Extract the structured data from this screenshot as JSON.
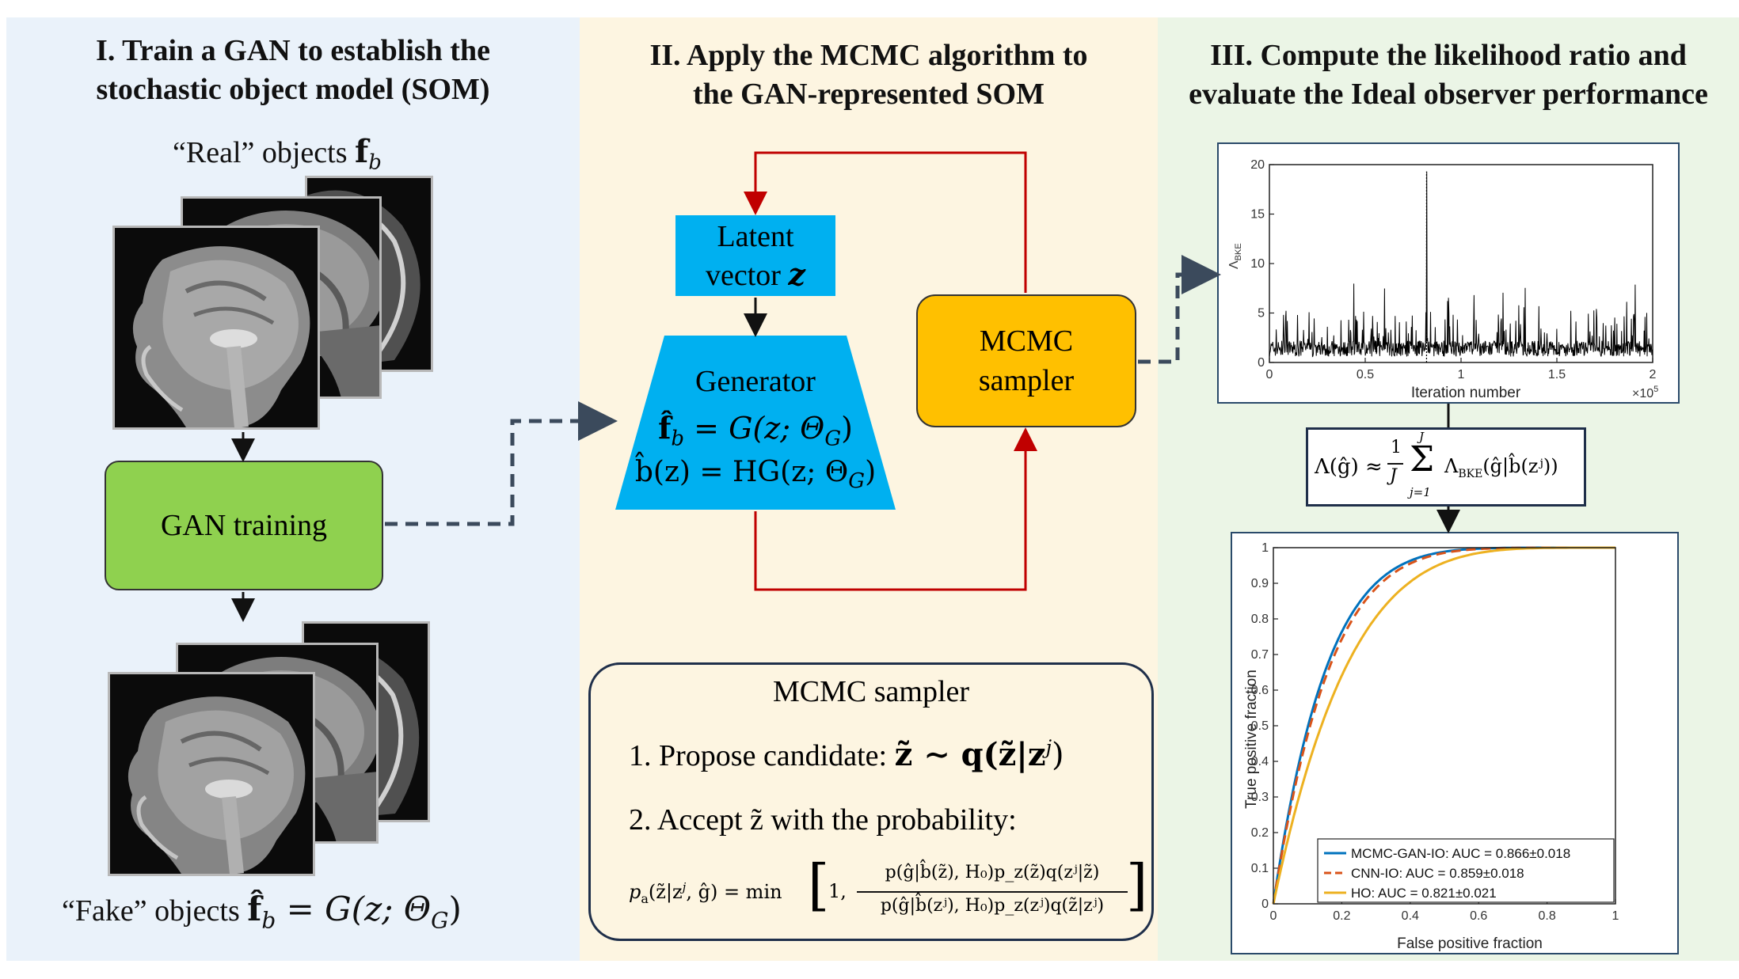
{
  "panel1": {
    "title_line1": "I. Train a GAN to establish the",
    "title_line2": "stochastic object model (SOM)",
    "real_label": "“Real” objects",
    "real_symbol": "f",
    "real_sub": "b",
    "gan_box": "GAN training",
    "fake_label": "“Fake” objects",
    "fake_formula": "f̂",
    "fake_sub": "b",
    "fake_rhs": "= G(z; Θ",
    "fake_rhs_sub": "G",
    "fake_rhs_end": ")"
  },
  "panel2": {
    "title_line1": "II. Apply the MCMC algorithm to",
    "title_line2": "the GAN-represented SOM",
    "latent_line1": "Latent",
    "latent_line2": "vector",
    "latent_sym": "z",
    "generator_title": "Generator",
    "gen_eq1_lhs": "f̂",
    "gen_eq1_sub": "b",
    "gen_eq1_rhs": "= G(z; Θ",
    "gen_eq1_rhs_sub": "G",
    "gen_eq1_end": ")",
    "gen_eq2": "b̂(z) = HG(z; Θ",
    "gen_eq2_sub": "G",
    "gen_eq2_end": ")",
    "mcmc_line1": "MCMC",
    "mcmc_line2": "sampler",
    "sampler_box": {
      "title": "MCMC sampler",
      "step1": "1. Propose candidate:",
      "step1_math": "z̃ ∼ q(z̃|z",
      "step1_sup": "j",
      "step1_end": ")",
      "step2": "2. Accept z̃ with the probability:",
      "pa_lhs": "p",
      "pa_sub": "a",
      "pa_args": "(z̃|z",
      "pa_sup": "j",
      "pa_args_end": ", ĝ) = min",
      "pa_one": "1,",
      "pa_num": "p(ĝ|b̂(z̃), H₀)p_z(z̃)q(zʲ|z̃)",
      "pa_den": "p(ĝ|b̂(zʲ), H₀)p_z(zʲ)q(z̃|zʲ)"
    }
  },
  "panel3": {
    "title_line1": "III. Compute the likelihood ratio and",
    "title_line2": "evaluate the Ideal observer performance",
    "formula_lhs": "Λ(ĝ) ≈",
    "formula_frac_num": "1",
    "formula_frac_den": "J",
    "formula_sum_top": "J",
    "formula_sum": "Σ",
    "formula_sum_bottom": "j=1",
    "formula_rhs": "Λ",
    "formula_rhs_sub": "BKE",
    "formula_rhs_args": "(ĝ|b̂(zʲ))"
  },
  "colors": {
    "green_box": "#8fd14f",
    "blue_box": "#00b0f0",
    "orange_box": "#ffc000",
    "red_arrow": "#c00000",
    "dashed_arrow": "#3b4a5c",
    "curve_blue": "#0072bd",
    "curve_red": "#d95319",
    "curve_yellow": "#edb120"
  },
  "chart_data": [
    {
      "type": "line",
      "ylabel": "Λ",
      "ylabel_sub": "BKE",
      "xlabel": "Iteration number",
      "x_multiplier": "×10",
      "x_multiplier_exp": "5",
      "xlim": [
        0,
        2
      ],
      "ylim": [
        0,
        20
      ],
      "x_ticks": [
        "0",
        "0.5",
        "1",
        "1.5",
        "2"
      ],
      "y_ticks": [
        "0",
        "5",
        "10",
        "15",
        "20"
      ],
      "grid": false,
      "notable_peak": {
        "x": 0.82,
        "y": 19.3
      }
    },
    {
      "type": "line",
      "xlabel": "False positive fraction",
      "ylabel": "True positive fraction",
      "xlim": [
        0,
        1
      ],
      "ylim": [
        0,
        1
      ],
      "x_ticks": [
        "0",
        "0.2",
        "0.4",
        "0.6",
        "0.8",
        "1"
      ],
      "y_ticks": [
        "0",
        "0.1",
        "0.2",
        "0.3",
        "0.4",
        "0.5",
        "0.6",
        "0.7",
        "0.8",
        "0.9",
        "1"
      ],
      "grid": false,
      "legend_position": "bottom-right",
      "series": [
        {
          "name": "MCMC-GAN-IO: AUC = 0.866±0.018",
          "auc": 0.866,
          "style": "solid",
          "color": "#0072bd"
        },
        {
          "name": "CNN-IO: AUC = 0.859±0.018",
          "auc": 0.859,
          "style": "dashed",
          "color": "#d95319"
        },
        {
          "name": "HO: AUC = 0.821±0.021",
          "auc": 0.821,
          "style": "solid",
          "color": "#edb120"
        }
      ]
    }
  ]
}
